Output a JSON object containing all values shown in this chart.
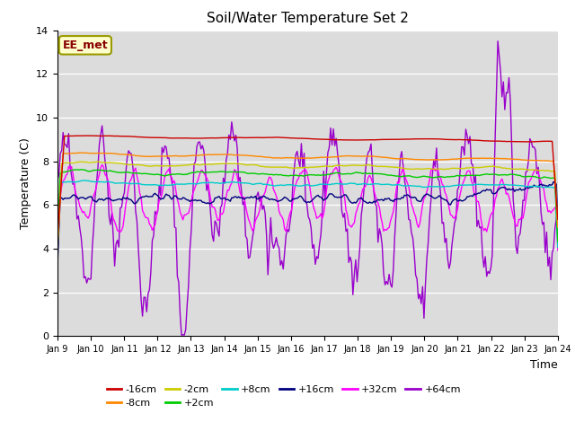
{
  "title": "Soil/Water Temperature Set 2",
  "xlabel": "Time",
  "ylabel": "Temperature (C)",
  "ylim": [
    0,
    14
  ],
  "xlim": [
    0,
    15
  ],
  "x_tick_labels": [
    "Jan 9",
    "Jan 10",
    "Jan 11",
    "Jan 12",
    "Jan 13",
    "Jan 14",
    "Jan 15",
    "Jan 16",
    "Jan 17",
    "Jan 18",
    "Jan 19",
    "Jan 20",
    "Jan 21",
    "Jan 22",
    "Jan 23",
    "Jan 24"
  ],
  "annotation": "EE_met",
  "plot_bg": "#dcdcdc",
  "fig_bg": "#ffffff",
  "series_colors": {
    "-16cm": "#cc0000",
    "-8cm": "#ff8800",
    "-2cm": "#cccc00",
    "+2cm": "#00cc00",
    "+8cm": "#00cccc",
    "+16cm": "#000080",
    "+32cm": "#ff00ff",
    "+64cm": "#9900cc"
  },
  "legend_row1": [
    "-16cm",
    "-8cm",
    "-2cm",
    "+2cm",
    "+8cm",
    "+16cm"
  ],
  "legend_row2": [
    "+32cm",
    "+64cm"
  ]
}
